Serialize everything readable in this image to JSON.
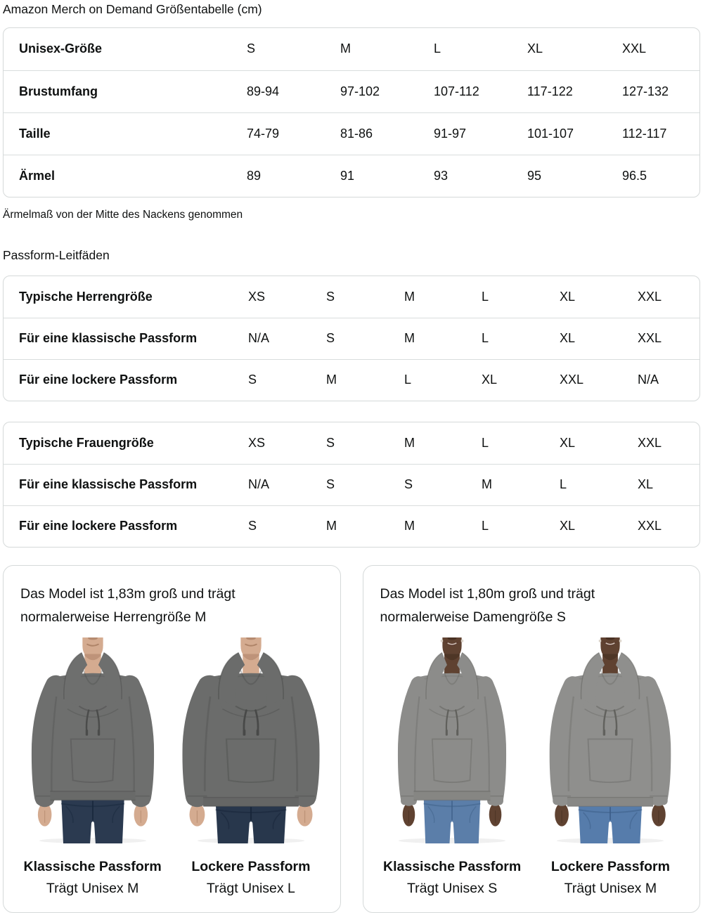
{
  "title": "Amazon Merch on Demand Größentabelle (cm)",
  "note": "Ärmelmaß von der Mitte des Nackens genommen",
  "fit_heading": "Passform-Leitfäden",
  "colors": {
    "text": "#0f1111",
    "border": "#d5d9d9"
  },
  "size_table": {
    "rows": [
      {
        "label": "Unisex-Größe",
        "values": [
          "S",
          "M",
          "L",
          "XL",
          "XXL"
        ]
      },
      {
        "label": "Brustumfang",
        "values": [
          "89-94",
          "97-102",
          "107-112",
          "117-122",
          "127-132"
        ]
      },
      {
        "label": "Taille",
        "values": [
          "74-79",
          "81-86",
          "91-97",
          "101-107",
          "112-117"
        ]
      },
      {
        "label": "Ärmel",
        "values": [
          "89",
          "91",
          "93",
          "95",
          "96.5"
        ]
      }
    ]
  },
  "mens_fit_table": {
    "rows": [
      {
        "label": "Typische Herrengröße",
        "values": [
          "XS",
          "S",
          "M",
          "L",
          "XL",
          "XXL"
        ]
      },
      {
        "label": "Für eine klassische Passform",
        "values": [
          "N/A",
          "S",
          "M",
          "L",
          "XL",
          "XXL"
        ]
      },
      {
        "label": "Für eine lockere Passform",
        "values": [
          "S",
          "M",
          "L",
          "XL",
          "XXL",
          "N/A"
        ]
      }
    ]
  },
  "womens_fit_table": {
    "rows": [
      {
        "label": "Typische Frauengröße",
        "values": [
          "XS",
          "S",
          "M",
          "L",
          "XL",
          "XXL"
        ]
      },
      {
        "label": "Für eine klassische Passform",
        "values": [
          "N/A",
          "S",
          "S",
          "M",
          "L",
          "XL"
        ]
      },
      {
        "label": "Für eine lockere Passform",
        "values": [
          "S",
          "M",
          "M",
          "L",
          "XL",
          "XXL"
        ]
      }
    ]
  },
  "cards": [
    {
      "description": "Das Model ist 1,83m groß und trägt normalerweise Herrengröße M",
      "figures": [
        {
          "fit_label": "Klassische Passform",
          "size_label": "Trägt Unisex M",
          "photo": {
            "gender": "male",
            "fit": "classic",
            "skin": "#d4ab90",
            "skin_shadow": "#a87c61",
            "hoodie": "#6e6f6e",
            "hoodie_dark": "#4b4c4b",
            "jeans": "#2b3a50",
            "jeans_dark": "#18273b"
          }
        },
        {
          "fit_label": "Lockere Passform",
          "size_label": "Trägt Unisex L",
          "photo": {
            "gender": "male",
            "fit": "loose",
            "skin": "#d4ab90",
            "skin_shadow": "#a87c61",
            "hoodie": "#6b6c6b",
            "hoodie_dark": "#484948",
            "jeans": "#28374c",
            "jeans_dark": "#162438"
          }
        }
      ]
    },
    {
      "description": "Das Model ist 1,80m groß und trägt normalerweise Damengröße S",
      "figures": [
        {
          "fit_label": "Klassische Passform",
          "size_label": "Trägt Unisex S",
          "photo": {
            "gender": "female",
            "fit": "classic",
            "skin": "#5f4231",
            "skin_shadow": "#3e2a1c",
            "hoodie": "#8c8c8a",
            "hoodie_dark": "#60605c",
            "jeans": "#5b7ea9",
            "jeans_dark": "#3e5f88"
          }
        },
        {
          "fit_label": "Lockere Passform",
          "size_label": "Trägt Unisex M",
          "photo": {
            "gender": "female",
            "fit": "loose",
            "skin": "#5f4231",
            "skin_shadow": "#3e2a1c",
            "hoodie": "#8f8f8d",
            "hoodie_dark": "#62625e",
            "jeans": "#567cab",
            "jeans_dark": "#3a5c86"
          }
        }
      ]
    }
  ]
}
